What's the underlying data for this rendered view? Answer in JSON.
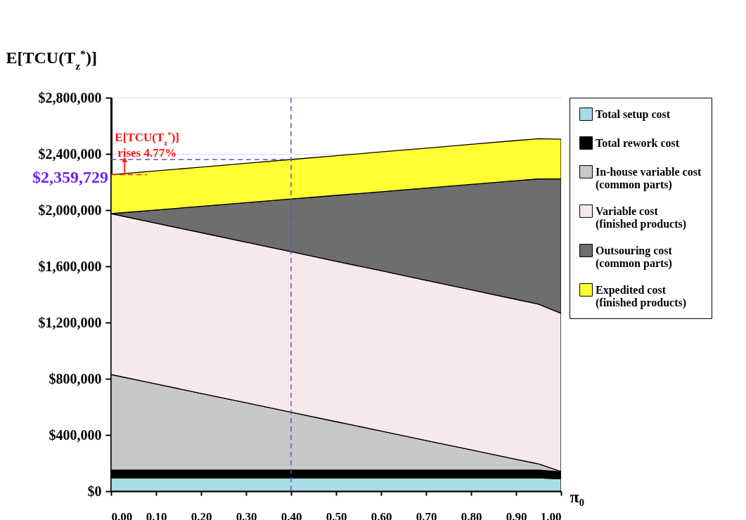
{
  "chart_data": {
    "type": "area",
    "stacked": true,
    "ylabel": "E[TCU(T$_{z}$$^{*}$)]",
    "xlabel": "π₀",
    "x": [
      0,
      0.1,
      0.2,
      0.3,
      0.4,
      0.5,
      0.6,
      0.7,
      0.8,
      0.9,
      0.95,
      1.0
    ],
    "xlim": [
      0,
      1
    ],
    "xticks": [
      {
        "value": 0,
        "label": "0.00"
      },
      {
        "value": 0.1,
        "label": "0.10"
      },
      {
        "value": 0.2,
        "label": "0.20"
      },
      {
        "value": 0.3,
        "label": "0.30"
      },
      {
        "value": 0.4,
        "label": "0.40"
      },
      {
        "value": 0.5,
        "label": "0.50"
      },
      {
        "value": 0.6,
        "label": "0.60"
      },
      {
        "value": 0.7,
        "label": "0.70"
      },
      {
        "value": 0.8,
        "label": "0.80"
      },
      {
        "value": 0.9,
        "label": "0.90"
      },
      {
        "value": 1,
        "label": "1.00"
      }
    ],
    "ylim": [
      0,
      2800000
    ],
    "yticks": [
      {
        "value": 0,
        "label": "$0"
      },
      {
        "value": 400000,
        "label": "$400,000"
      },
      {
        "value": 800000,
        "label": "$800,000"
      },
      {
        "value": 1200000,
        "label": "$1,200,000"
      },
      {
        "value": 1600000,
        "label": "$1,600,000"
      },
      {
        "value": 2000000,
        "label": "$2,000,000"
      },
      {
        "value": 2400000,
        "label": "$2,400,000"
      },
      {
        "value": 2800000,
        "label": "$2,800,000"
      }
    ],
    "grid": "y",
    "legend": "right",
    "series": [
      {
        "name": "Total setup cost",
        "color": "#a8dde6",
        "values": [
          95000,
          95000,
          95000,
          95000,
          95000,
          95000,
          95000,
          95000,
          95000,
          95000,
          95000,
          88000
        ]
      },
      {
        "name": "Total rework cost",
        "color": "#000000",
        "values": [
          55000,
          55000,
          55000,
          55000,
          55000,
          55000,
          55000,
          55000,
          55000,
          55000,
          55000,
          50000
        ]
      },
      {
        "name": "In-house variable cost (common parts)",
        "color": "#c8c8c8",
        "values": [
          680000,
          613000,
          546000,
          479000,
          412000,
          345000,
          278000,
          211000,
          144000,
          77000,
          44000,
          2000
        ]
      },
      {
        "name": "Variable cost (finished products)",
        "color": "#f7e8ec",
        "values": [
          1145000,
          1144000,
          1144000,
          1143000,
          1142000,
          1141000,
          1141000,
          1140000,
          1139000,
          1138000,
          1137000,
          1125000
        ]
      },
      {
        "name": "Outsouring cost (common parts)",
        "color": "#6e6e6e",
        "values": [
          0,
          94000,
          187000,
          281000,
          375000,
          469000,
          562000,
          656000,
          750000,
          844000,
          891000,
          957000
        ]
      },
      {
        "name": "Expedited cost (finished products)",
        "color": "#ffff33",
        "values": [
          277000,
          278000,
          279000,
          280000,
          281000,
          282000,
          283000,
          284000,
          285000,
          286000,
          286000,
          282000
        ]
      }
    ],
    "ref_lines": [
      {
        "axis": "x",
        "value": 0.4,
        "color": "#8040c0",
        "line_style": "dashed"
      }
    ],
    "annotations": [
      {
        "text": "$2,359,729",
        "x": 0.4,
        "y": 2359729
      },
      {
        "text": "E[TCU(T$_{z}$$^{*}$)]\nrises 4.77%",
        "x": 0,
        "y": 2252295
      }
    ]
  }
}
